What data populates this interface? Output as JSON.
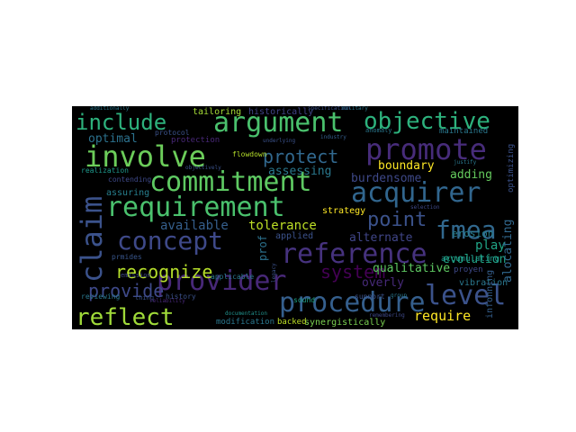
{
  "words": [
    {
      "text": "argument",
      "color": "#4ac16d"
    },
    {
      "text": "objective",
      "color": "#2db27d"
    },
    {
      "text": "include",
      "color": "#2db27d"
    },
    {
      "text": "involve",
      "color": "#6ccd5a"
    },
    {
      "text": "promote",
      "color": "#472c7a"
    },
    {
      "text": "commitment",
      "color": "#5ec962"
    },
    {
      "text": "acquirer",
      "color": "#31668e"
    },
    {
      "text": "requirement",
      "color": "#4ac16d"
    },
    {
      "text": "claim",
      "color": "#3b528b"
    },
    {
      "text": "concept",
      "color": "#3e4989"
    },
    {
      "text": "point",
      "color": "#3b528b"
    },
    {
      "text": "fmea",
      "color": "#31688e"
    },
    {
      "text": "reference",
      "color": "#46327e"
    },
    {
      "text": "provider",
      "color": "#482878"
    },
    {
      "text": "procedure",
      "color": "#355f8d"
    },
    {
      "text": "level",
      "color": "#3b528b"
    },
    {
      "text": "reflect",
      "color": "#a0da39"
    },
    {
      "text": "recognize",
      "color": "#b5de2b"
    },
    {
      "text": "provide",
      "color": "#3e4989"
    },
    {
      "text": "system",
      "color": "#440154"
    },
    {
      "text": "protect",
      "color": "#31688e"
    },
    {
      "text": "optimal",
      "color": "#2c728e"
    },
    {
      "text": "boundary",
      "color": "#fde725"
    },
    {
      "text": "adding",
      "color": "#65cb5e"
    },
    {
      "text": "assessing",
      "color": "#2a788e"
    },
    {
      "text": "burdensome",
      "color": "#3e4989"
    },
    {
      "text": "available",
      "color": "#355f8d"
    },
    {
      "text": "tolerance",
      "color": "#bddf26"
    },
    {
      "text": "alternate",
      "color": "#404688"
    },
    {
      "text": "evolution",
      "color": "#21a585"
    },
    {
      "text": "require",
      "color": "#fde725"
    },
    {
      "text": "play",
      "color": "#20a486"
    },
    {
      "text": "overly",
      "color": "#472a7a"
    },
    {
      "text": "qualitative",
      "color": "#5ec962"
    },
    {
      "text": "alocating",
      "color": "#31688e"
    },
    {
      "text": "tailoring",
      "color": "#a5db36"
    },
    {
      "text": "historically",
      "color": "#414487"
    },
    {
      "text": "strategy",
      "color": "#fde725"
    },
    {
      "text": "applied",
      "color": "#3b528b"
    },
    {
      "text": "prof",
      "color": "#2c728e"
    },
    {
      "text": "erosion",
      "color": "#277f8e"
    },
    {
      "text": "vibration",
      "color": "#2a788e"
    },
    {
      "text": "infonning",
      "color": "#355f8d"
    },
    {
      "text": "maintained",
      "color": "#2a788e"
    },
    {
      "text": "proyen",
      "color": "#3e4989"
    },
    {
      "text": "accumulating",
      "color": "#1f988b"
    },
    {
      "text": "synergistically",
      "color": "#7ad151"
    },
    {
      "text": "modification",
      "color": "#2a788e"
    },
    {
      "text": "backed",
      "color": "#bddf26"
    },
    {
      "text": "history",
      "color": "#3b528b"
    },
    {
      "text": "reviewing",
      "color": "#2a788e"
    },
    {
      "text": "sound",
      "color": "#20a486"
    },
    {
      "text": "sunnort",
      "color": "#3b528b"
    },
    {
      "text": "assuring",
      "color": "#277f8e"
    },
    {
      "text": "realization",
      "color": "#1f988b"
    },
    {
      "text": "contending",
      "color": "#3e4989"
    },
    {
      "text": "prmides",
      "color": "#39568c"
    },
    {
      "text": "emission",
      "color": "#3e4989"
    },
    {
      "text": "applicable",
      "color": "#2a788e"
    },
    {
      "text": "flowdown",
      "color": "#b5de2b"
    },
    {
      "text": "protocol",
      "color": "#3b528b"
    },
    {
      "text": "protection",
      "color": "#482878"
    },
    {
      "text": "thing",
      "color": "#3b528b"
    },
    {
      "text": "anomaly",
      "color": "#2a788e"
    },
    {
      "text": "optimizing",
      "color": "#3b528b"
    },
    {
      "text": "additionally",
      "color": "#2a788e"
    },
    {
      "text": "military",
      "color": "#2a788e"
    },
    {
      "text": "specification",
      "color": "#3b528b"
    },
    {
      "text": "industry",
      "color": "#355f8d"
    },
    {
      "text": "legacy",
      "color": "#3b528b"
    },
    {
      "text": "group",
      "color": "#2a788e"
    },
    {
      "text": "reliability",
      "color": "#482878"
    },
    {
      "text": "documentation",
      "color": "#21918c"
    },
    {
      "text": "selection",
      "color": "#3e4989"
    },
    {
      "text": "justify",
      "color": "#2a788e"
    },
    {
      "text": "underlying",
      "color": "#3b528b"
    },
    {
      "text": "objectively",
      "color": "#3b528b"
    },
    {
      "text": "remembering",
      "color": "#3e4989"
    }
  ]
}
